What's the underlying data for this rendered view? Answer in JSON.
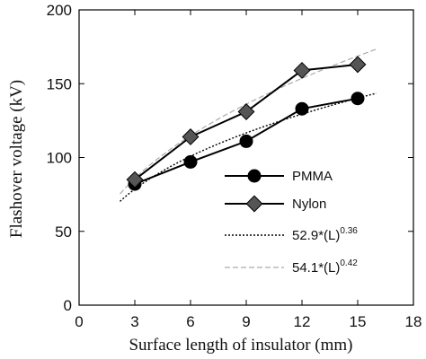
{
  "chart_data": {
    "type": "line",
    "xlabel": "Surface length of insulator (mm)",
    "ylabel": "Flashover voltage (kV)",
    "xlim": [
      0,
      18
    ],
    "ylim": [
      0,
      200
    ],
    "xticks": [
      0,
      3,
      6,
      9,
      12,
      15,
      18
    ],
    "yticks": [
      0,
      50,
      100,
      150,
      200
    ],
    "grid": false,
    "legend_position": "right",
    "series": [
      {
        "name": "PMMA",
        "kind": "markers-line",
        "marker": "circle",
        "color": "#000000",
        "x": [
          3,
          6,
          9,
          12,
          15
        ],
        "y": [
          82,
          97,
          111,
          133,
          140
        ]
      },
      {
        "name": "Nylon",
        "kind": "markers-line",
        "marker": "diamond",
        "color": "#555555",
        "x": [
          3,
          6,
          9,
          12,
          15
        ],
        "y": [
          85,
          114,
          131,
          159,
          163
        ]
      },
      {
        "name": "52.9*(L)",
        "name_sup": "0.36",
        "kind": "fit",
        "dash": "dotted",
        "color": "#000000",
        "coef": 52.9,
        "exponent": 0.36,
        "x_range": [
          2.2,
          16
        ]
      },
      {
        "name": "54.1*(L)",
        "name_sup": "0.42",
        "kind": "fit",
        "dash": "dashed",
        "color": "#aaaaaa",
        "coef": 54.1,
        "exponent": 0.42,
        "x_range": [
          2.2,
          16
        ]
      }
    ]
  }
}
